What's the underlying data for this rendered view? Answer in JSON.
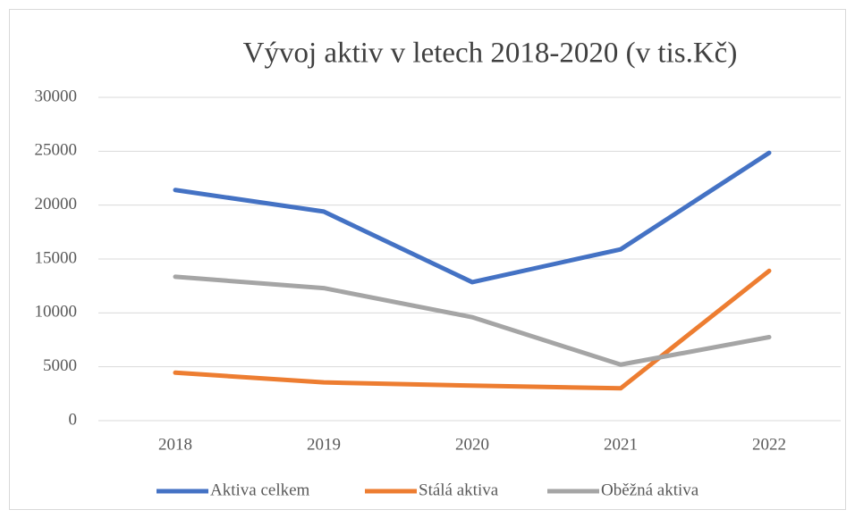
{
  "chart_data": {
    "type": "line",
    "title": "Vývoj aktiv v letech 2018-2020 (v tis.Kč)",
    "categories": [
      "2018",
      "2019",
      "2020",
      "2021",
      "2022"
    ],
    "series": [
      {
        "name": "Aktiva celkem",
        "color": "#4472c4",
        "values": [
          21400,
          19400,
          12850,
          15900,
          24850
        ]
      },
      {
        "name": "Stálá aktiva",
        "color": "#ed7d31",
        "values": [
          4450,
          3550,
          3250,
          3000,
          13900
        ]
      },
      {
        "name": "Oběžná aktiva",
        "color": "#a5a5a5",
        "values": [
          13350,
          12300,
          9600,
          5200,
          7750
        ]
      }
    ],
    "ylim": [
      0,
      30000
    ],
    "yticks": [
      0,
      5000,
      10000,
      15000,
      20000,
      25000,
      30000
    ],
    "grid": true,
    "legend": "bottom"
  }
}
